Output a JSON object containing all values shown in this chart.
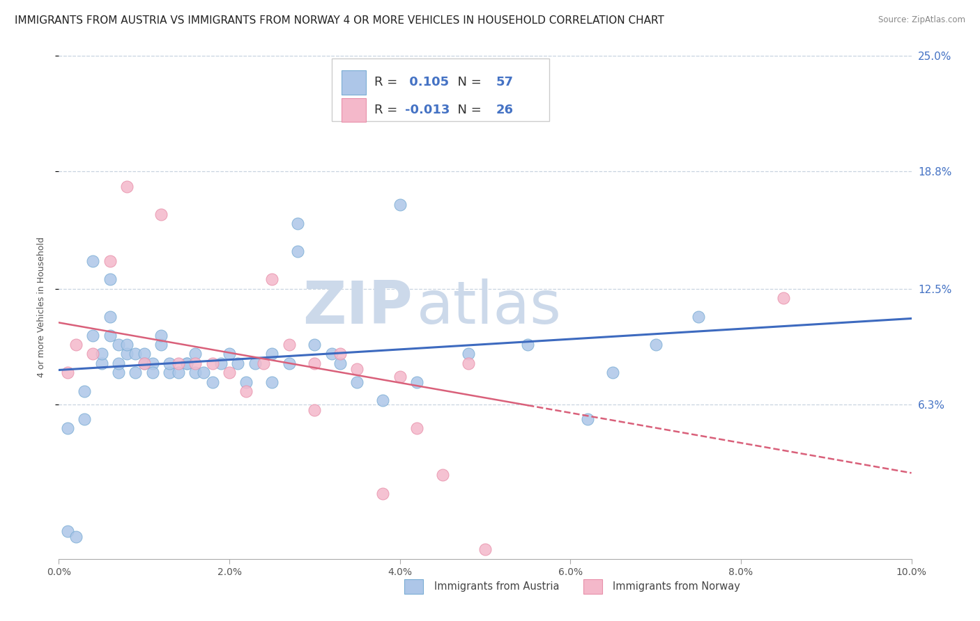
{
  "title": "IMMIGRANTS FROM AUSTRIA VS IMMIGRANTS FROM NORWAY 4 OR MORE VEHICLES IN HOUSEHOLD CORRELATION CHART",
  "source": "Source: ZipAtlas.com",
  "ylabel": "4 or more Vehicles in Household",
  "x_min": 0.0,
  "x_max": 0.1,
  "y_min": -0.02,
  "y_max": 0.25,
  "y_ticks": [
    0.063,
    0.125,
    0.188,
    0.25
  ],
  "y_tick_labels": [
    "6.3%",
    "12.5%",
    "18.8%",
    "25.0%"
  ],
  "x_tick_labels": [
    "0.0%",
    "2.0%",
    "4.0%",
    "6.0%",
    "8.0%",
    "10.0%"
  ],
  "x_ticks": [
    0.0,
    0.02,
    0.04,
    0.06,
    0.08,
    0.1
  ],
  "austria_color": "#adc6e8",
  "austria_edge": "#7aadd4",
  "norway_color": "#f4b8ca",
  "norway_edge": "#e890aa",
  "austria_line_color": "#3d6abf",
  "norway_line_color": "#d9607a",
  "austria_R": 0.105,
  "austria_N": 57,
  "norway_R": -0.013,
  "norway_N": 26,
  "watermark_zip": "ZIP",
  "watermark_atlas": "atlas",
  "watermark_color": "#ccd9ea",
  "legend_austria": "Immigrants from Austria",
  "legend_norway": "Immigrants from Norway",
  "austria_scatter_x": [
    0.001,
    0.001,
    0.002,
    0.003,
    0.003,
    0.004,
    0.004,
    0.005,
    0.005,
    0.006,
    0.006,
    0.006,
    0.007,
    0.007,
    0.007,
    0.008,
    0.008,
    0.009,
    0.009,
    0.01,
    0.01,
    0.011,
    0.011,
    0.012,
    0.012,
    0.013,
    0.013,
    0.014,
    0.015,
    0.015,
    0.016,
    0.016,
    0.017,
    0.018,
    0.019,
    0.02,
    0.021,
    0.022,
    0.023,
    0.025,
    0.025,
    0.027,
    0.028,
    0.028,
    0.03,
    0.032,
    0.033,
    0.035,
    0.038,
    0.04,
    0.042,
    0.048,
    0.055,
    0.062,
    0.065,
    0.07,
    0.075
  ],
  "austria_scatter_y": [
    0.05,
    -0.005,
    -0.008,
    0.055,
    0.07,
    0.1,
    0.14,
    0.085,
    0.09,
    0.1,
    0.11,
    0.13,
    0.08,
    0.095,
    0.085,
    0.09,
    0.095,
    0.09,
    0.08,
    0.085,
    0.09,
    0.085,
    0.08,
    0.095,
    0.1,
    0.08,
    0.085,
    0.08,
    0.085,
    0.085,
    0.08,
    0.09,
    0.08,
    0.075,
    0.085,
    0.09,
    0.085,
    0.075,
    0.085,
    0.09,
    0.075,
    0.085,
    0.145,
    0.16,
    0.095,
    0.09,
    0.085,
    0.075,
    0.065,
    0.17,
    0.075,
    0.09,
    0.095,
    0.055,
    0.08,
    0.095,
    0.11
  ],
  "norway_scatter_x": [
    0.001,
    0.002,
    0.004,
    0.006,
    0.008,
    0.01,
    0.012,
    0.014,
    0.016,
    0.018,
    0.02,
    0.022,
    0.024,
    0.025,
    0.027,
    0.03,
    0.03,
    0.033,
    0.035,
    0.038,
    0.04,
    0.042,
    0.045,
    0.048,
    0.05,
    0.085
  ],
  "norway_scatter_y": [
    0.08,
    0.095,
    0.09,
    0.14,
    0.18,
    0.085,
    0.165,
    0.085,
    0.085,
    0.085,
    0.08,
    0.07,
    0.085,
    0.13,
    0.095,
    0.085,
    0.06,
    0.09,
    0.082,
    0.015,
    0.078,
    0.05,
    0.025,
    0.085,
    -0.015,
    0.12
  ],
  "background_color": "#ffffff",
  "grid_color": "#c8d4e0",
  "title_fontsize": 11,
  "axis_label_fontsize": 9,
  "tick_label_fontsize": 10,
  "legend_fontsize": 13,
  "stat_color": "#4472c4"
}
